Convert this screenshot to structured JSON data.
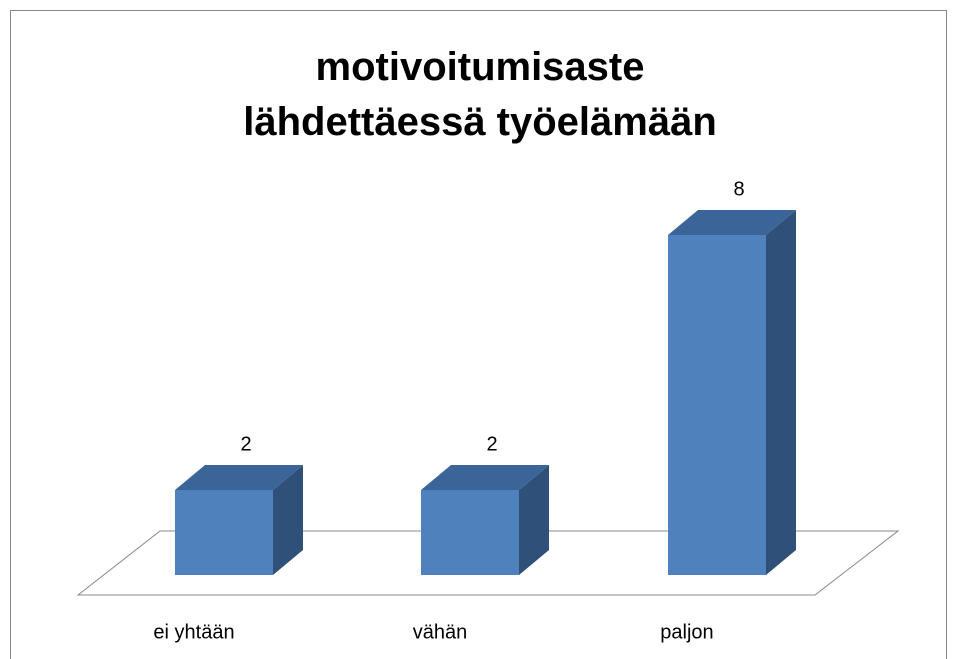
{
  "chart_data": {
    "type": "bar3d",
    "title": "motivoitumisaste lähdettäessä työelämään",
    "categories": [
      "ei yhtään",
      "vähän",
      "paljon"
    ],
    "values": [
      2,
      2,
      8
    ],
    "color": "#4f81bd"
  }
}
